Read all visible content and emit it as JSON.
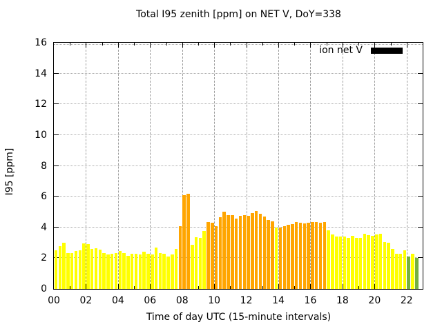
{
  "chart_data": {
    "type": "bar",
    "title": "Total I95 zenith [ppm] on NET V, DoY=338",
    "xlabel": "Time of day UTC (15-minute intervals)",
    "ylabel": "I95 [ppm]",
    "ylim": [
      0,
      16
    ],
    "xlim_hours": [
      0,
      23
    ],
    "interval_minutes": 15,
    "grid": true,
    "y_ticks": [
      0,
      2,
      4,
      6,
      8,
      10,
      12,
      14,
      16
    ],
    "x_ticks": [
      "00",
      "02",
      "04",
      "06",
      "08",
      "10",
      "12",
      "14",
      "16",
      "18",
      "20",
      "22"
    ],
    "legend": {
      "label": "ion net V",
      "position": "top-right",
      "swatch_color": "#000000"
    },
    "color_key": {
      "y": "#ffff00",
      "o": "#ffa500",
      "g": "#76b041"
    },
    "bars": [
      [
        "00:00",
        2.5,
        "y"
      ],
      [
        "00:15",
        2.8,
        "y"
      ],
      [
        "00:30",
        3.0,
        "y"
      ],
      [
        "00:45",
        2.35,
        "y"
      ],
      [
        "01:00",
        2.35,
        "y"
      ],
      [
        "01:15",
        2.45,
        "y"
      ],
      [
        "01:30",
        2.5,
        "y"
      ],
      [
        "01:45",
        2.95,
        "y"
      ],
      [
        "02:00",
        2.9,
        "y"
      ],
      [
        "02:15",
        2.6,
        "y"
      ],
      [
        "02:30",
        2.65,
        "y"
      ],
      [
        "02:45",
        2.55,
        "y"
      ],
      [
        "03:00",
        2.35,
        "y"
      ],
      [
        "03:15",
        2.25,
        "y"
      ],
      [
        "03:30",
        2.3,
        "y"
      ],
      [
        "03:45",
        2.35,
        "y"
      ],
      [
        "04:00",
        2.45,
        "y"
      ],
      [
        "04:15",
        2.35,
        "y"
      ],
      [
        "04:30",
        2.15,
        "y"
      ],
      [
        "04:45",
        2.3,
        "y"
      ],
      [
        "05:00",
        2.3,
        "y"
      ],
      [
        "05:15",
        2.25,
        "y"
      ],
      [
        "05:30",
        2.4,
        "y"
      ],
      [
        "05:45",
        2.3,
        "y"
      ],
      [
        "06:00",
        2.25,
        "y"
      ],
      [
        "06:15",
        2.7,
        "y"
      ],
      [
        "06:30",
        2.35,
        "y"
      ],
      [
        "06:45",
        2.3,
        "y"
      ],
      [
        "07:00",
        2.1,
        "y"
      ],
      [
        "07:15",
        2.25,
        "y"
      ],
      [
        "07:30",
        2.6,
        "y"
      ],
      [
        "07:45",
        4.1,
        "o"
      ],
      [
        "08:00",
        6.1,
        "o"
      ],
      [
        "08:15",
        6.2,
        "o"
      ],
      [
        "08:30",
        2.85,
        "y"
      ],
      [
        "08:45",
        3.35,
        "y"
      ],
      [
        "09:00",
        3.3,
        "y"
      ],
      [
        "09:15",
        3.75,
        "y"
      ],
      [
        "09:30",
        4.35,
        "o"
      ],
      [
        "09:45",
        4.3,
        "o"
      ],
      [
        "10:00",
        4.1,
        "o"
      ],
      [
        "10:15",
        4.65,
        "o"
      ],
      [
        "10:30",
        5.0,
        "o"
      ],
      [
        "10:45",
        4.8,
        "o"
      ],
      [
        "11:00",
        4.8,
        "o"
      ],
      [
        "11:15",
        4.55,
        "o"
      ],
      [
        "11:30",
        4.75,
        "o"
      ],
      [
        "11:45",
        4.8,
        "o"
      ],
      [
        "12:00",
        4.75,
        "o"
      ],
      [
        "12:15",
        4.95,
        "o"
      ],
      [
        "12:30",
        5.05,
        "o"
      ],
      [
        "12:45",
        4.9,
        "o"
      ],
      [
        "13:00",
        4.7,
        "o"
      ],
      [
        "13:15",
        4.5,
        "o"
      ],
      [
        "13:30",
        4.4,
        "o"
      ],
      [
        "13:45",
        4.0,
        "y"
      ],
      [
        "14:00",
        4.0,
        "o"
      ],
      [
        "14:15",
        4.1,
        "o"
      ],
      [
        "14:30",
        4.15,
        "o"
      ],
      [
        "14:45",
        4.2,
        "o"
      ],
      [
        "15:00",
        4.35,
        "o"
      ],
      [
        "15:15",
        4.3,
        "o"
      ],
      [
        "15:30",
        4.25,
        "o"
      ],
      [
        "15:45",
        4.3,
        "o"
      ],
      [
        "16:00",
        4.35,
        "o"
      ],
      [
        "16:15",
        4.35,
        "o"
      ],
      [
        "16:30",
        4.3,
        "o"
      ],
      [
        "16:45",
        4.35,
        "o"
      ],
      [
        "17:00",
        3.8,
        "y"
      ],
      [
        "17:15",
        3.55,
        "y"
      ],
      [
        "17:30",
        3.4,
        "y"
      ],
      [
        "17:45",
        3.4,
        "y"
      ],
      [
        "18:00",
        3.4,
        "y"
      ],
      [
        "18:15",
        3.3,
        "y"
      ],
      [
        "18:30",
        3.45,
        "y"
      ],
      [
        "18:45",
        3.3,
        "y"
      ],
      [
        "19:00",
        3.3,
        "y"
      ],
      [
        "19:15",
        3.6,
        "y"
      ],
      [
        "19:30",
        3.5,
        "y"
      ],
      [
        "19:45",
        3.45,
        "y"
      ],
      [
        "20:00",
        3.55,
        "y"
      ],
      [
        "20:15",
        3.6,
        "y"
      ],
      [
        "20:30",
        3.05,
        "y"
      ],
      [
        "20:45",
        3.0,
        "y"
      ],
      [
        "21:00",
        2.6,
        "y"
      ],
      [
        "21:15",
        2.3,
        "y"
      ],
      [
        "21:30",
        2.3,
        "y"
      ],
      [
        "21:45",
        2.5,
        "y"
      ],
      [
        "22:00",
        2.1,
        "g"
      ],
      [
        "22:15",
        2.3,
        "y"
      ],
      [
        "22:30",
        2.0,
        "g"
      ]
    ]
  }
}
